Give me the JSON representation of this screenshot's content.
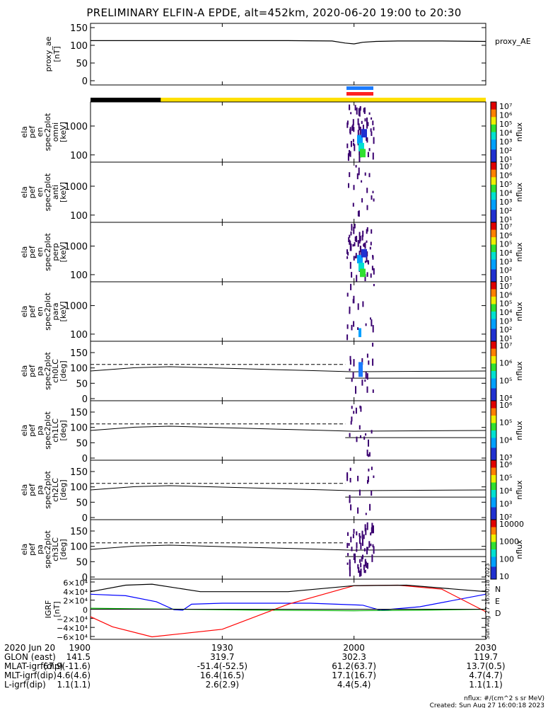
{
  "title": "PRELIMINARY ELFIN-A EPDE, alt=452km, 2020-06-20 19:00 to 20:30",
  "chart_data": {
    "type": "heatmap",
    "time_range": [
      "2020-06-20 19:00",
      "2020-06-20 20:30"
    ],
    "x_ticks": [
      "1900",
      "1930",
      "2000",
      "2030"
    ],
    "panels": [
      {
        "id": "proxy_ae",
        "ylabel": [
          "proxy_ae",
          "[nT]"
        ],
        "legend": "proxy_AE",
        "yticks": [
          "150",
          "100",
          "50",
          "0"
        ],
        "ylim": [
          0,
          150
        ],
        "series": [
          {
            "name": "proxy_AE",
            "color": "#000000",
            "t": [
              0,
              20,
              45,
              55,
              58,
              60,
              62,
              65,
              70,
              80,
              90
            ],
            "v": [
              108,
              108,
              108,
              107,
              102,
              100,
              104,
              106,
              107,
              107,
              106
            ]
          }
        ]
      },
      {
        "id": "en_omni",
        "ylabel": [
          "ela",
          "pef",
          "en",
          "spec2plot",
          "omni",
          "[keV]"
        ],
        "yticks": [
          "1000",
          "100"
        ],
        "scale": "log",
        "colorbar": {
          "label": "nflux",
          "ticks": [
            "10⁷",
            "10⁶",
            "10⁵",
            "10⁴",
            "10³",
            "10²",
            "10¹"
          ]
        }
      },
      {
        "id": "en_anti",
        "ylabel": [
          "ela",
          "pef",
          "en",
          "spec2plot",
          "anti",
          "[keV]"
        ],
        "yticks": [
          "1000",
          "100"
        ],
        "scale": "log",
        "colorbar": {
          "label": "nflux",
          "ticks": [
            "10⁷",
            "10⁶",
            "10⁵",
            "10⁴",
            "10³",
            "10²",
            "10¹"
          ]
        }
      },
      {
        "id": "en_perp",
        "ylabel": [
          "ela",
          "pef",
          "en",
          "spec2plot",
          "perp",
          "[keV]"
        ],
        "yticks": [
          "1000",
          "100"
        ],
        "scale": "log",
        "colorbar": {
          "label": "nflux",
          "ticks": [
            "10⁷",
            "10⁶",
            "10⁵",
            "10⁴",
            "10³",
            "10²",
            "10¹"
          ]
        }
      },
      {
        "id": "en_para",
        "ylabel": [
          "ela",
          "pef",
          "en",
          "spec2plot",
          "para",
          "[keV]"
        ],
        "yticks": [
          "1000",
          "100"
        ],
        "scale": "log",
        "colorbar": {
          "label": "nflux",
          "ticks": [
            "10⁷",
            "10⁶",
            "10⁵",
            "10⁴",
            "10³",
            "10²",
            "10¹"
          ]
        }
      },
      {
        "id": "pa_ch0",
        "ylabel": [
          "ela",
          "pef",
          "pa",
          "spec2plot",
          "ch0LC",
          "[deg]"
        ],
        "yticks": [
          "150",
          "100",
          "50",
          "0"
        ],
        "ylim": [
          0,
          180
        ],
        "colorbar": {
          "label": "nflux",
          "ticks": [
            "10⁷",
            "10⁶",
            "10⁵",
            "10⁴"
          ]
        }
      },
      {
        "id": "pa_ch1",
        "ylabel": [
          "ela",
          "pef",
          "pa",
          "spec2plot",
          "ch1LC",
          "[deg]"
        ],
        "yticks": [
          "150",
          "100",
          "50",
          "0"
        ],
        "ylim": [
          0,
          180
        ],
        "colorbar": {
          "label": "nflux",
          "ticks": [
            "10⁶",
            "10⁵",
            "10⁴",
            "10³"
          ]
        }
      },
      {
        "id": "pa_ch2",
        "ylabel": [
          "ela",
          "pef",
          "pa",
          "spec2plot",
          "ch2LC",
          "[deg]"
        ],
        "yticks": [
          "150",
          "100",
          "50",
          "0"
        ],
        "ylim": [
          0,
          180
        ],
        "colorbar": {
          "label": "nflux",
          "ticks": [
            "10⁶",
            "10⁵",
            "10⁴",
            "10³",
            "10²"
          ]
        }
      },
      {
        "id": "pa_ch3",
        "ylabel": [
          "ela",
          "pef",
          "pa",
          "spec2plot",
          "ch3LC",
          "[deg]"
        ],
        "yticks": [
          "150",
          "100",
          "50",
          "0"
        ],
        "ylim": [
          0,
          180
        ],
        "colorbar": {
          "label": "nflux",
          "ticks": [
            "10000",
            "1000",
            "100",
            "10"
          ]
        }
      },
      {
        "id": "igrf",
        "ylabel": [
          "IGRF",
          "[nT]"
        ],
        "yticks": [
          "6×10⁴",
          "4×10⁴",
          "2×10⁴",
          "0",
          "−2×10⁴",
          "−4×10⁴",
          "−6×10⁴"
        ],
        "ylim": [
          -60000,
          60000
        ],
        "legend": [
          "N",
          "E",
          "D"
        ],
        "series": [
          {
            "name": "N",
            "color": "#0000ff",
            "t": [
              0,
              8,
              15,
              19,
              21,
              23,
              30,
              50,
              62,
              66,
              75,
              90
            ],
            "v": [
              30000,
              27000,
              15000,
              -1000,
              -2000,
              10000,
              12000,
              12000,
              8000,
              -2000,
              5000,
              30000
            ]
          },
          {
            "name": "E",
            "color": "#00aa00",
            "t": [
              0,
              10,
              20,
              40,
              60,
              75,
              90
            ],
            "v": [
              2000,
              1000,
              0,
              -2000,
              -3000,
              -2000,
              0
            ]
          },
          {
            "name": "D",
            "color": "#ff0000",
            "t": [
              0,
              5,
              14,
              30,
              45,
              60,
              70,
              80,
              90
            ],
            "v": [
              -15000,
              -35000,
              -55000,
              -40000,
              10000,
              47000,
              48000,
              40000,
              -5000
            ]
          },
          {
            "name": "total",
            "color": "#000000",
            "t": [
              0,
              8,
              14,
              25,
              45,
              60,
              72,
              90
            ],
            "v": [
              35000,
              48000,
              50000,
              35000,
              35000,
              47000,
              48000,
              35000
            ]
          }
        ]
      }
    ],
    "orbit_bar": {
      "colors": [
        "#000000",
        "#ffe000"
      ],
      "split_t": 16
    },
    "event_bars": [
      {
        "color": "#1b7bff"
      },
      {
        "color": "#ff2020"
      }
    ],
    "footer_rows": [
      {
        "label": "2020 Jun 20",
        "values": [
          "1900",
          "1930",
          "2000",
          "2030"
        ]
      },
      {
        "label": "GLON (east)",
        "values": [
          "141.5",
          "319.7",
          "302.3",
          "119.7"
        ]
      },
      {
        "label": "MLAT-igrf(dip)",
        "values": [
          "67.9(-11.6)",
          "-51.4(-52.5)",
          "61.2(63.7)",
          "13.7(0.5)"
        ]
      },
      {
        "label": "MLT-igrf(dip)",
        "values": [
          "4.6(4.6)",
          "16.4(16.5)",
          "17.1(16.7)",
          "4.7(4.7)"
        ]
      },
      {
        "label": "L-igrf(dip)",
        "values": [
          "1.1(1.1)",
          "2.6(2.9)",
          "4.4(5.4)",
          "1.1(1.1)"
        ]
      }
    ],
    "units_note": "nflux: #/(cm^2 s sr MeV)",
    "created": "Created: Sun Aug 27 16:00:18 2023",
    "side_stamp": "Sun Aug 27 16:00:18 2023"
  }
}
